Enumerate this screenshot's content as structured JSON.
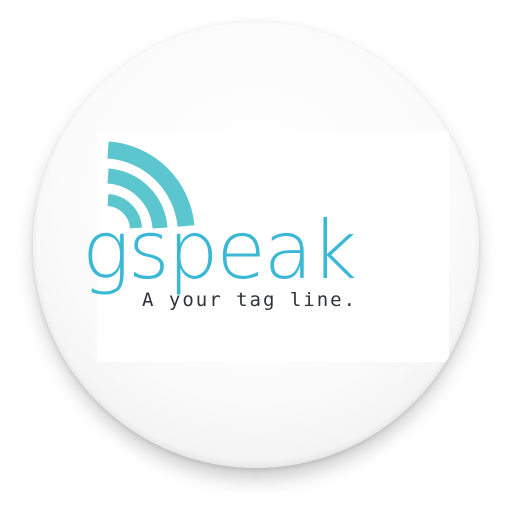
{
  "app_icon": {
    "wordmark": "gspeak",
    "tagline": "A your tag line.",
    "icon_name": "wifi-signal-icon",
    "colors": {
      "brand_teal": "#5cc6cf",
      "brand_blue": "#3bb8d5",
      "tagline_gray": "#2f3236",
      "disc": "#ffffff"
    }
  }
}
